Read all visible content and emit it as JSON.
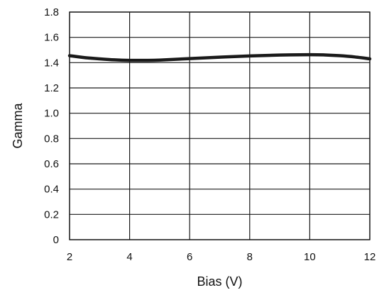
{
  "chart_data": {
    "type": "line",
    "xlabel": "Bias (V)",
    "ylabel": "Gamma",
    "xlim": [
      2,
      12
    ],
    "ylim": [
      0,
      1.8
    ],
    "xticks": [
      "2",
      "4",
      "6",
      "8",
      "10",
      "12"
    ],
    "yticks": [
      "0",
      "0.2",
      "0.4",
      "0.6",
      "0.8",
      "1.0",
      "1.2",
      "1.4",
      "1.6",
      "1.8"
    ],
    "grid": true,
    "series": [
      {
        "x": [
          2,
          2.5,
          3,
          3.5,
          4,
          4.5,
          5,
          6,
          7,
          8,
          9,
          10,
          10.5,
          11,
          11.5,
          12
        ],
        "y": [
          1.455,
          1.44,
          1.43,
          1.422,
          1.418,
          1.418,
          1.42,
          1.432,
          1.443,
          1.453,
          1.46,
          1.463,
          1.461,
          1.455,
          1.445,
          1.43
        ]
      }
    ]
  }
}
